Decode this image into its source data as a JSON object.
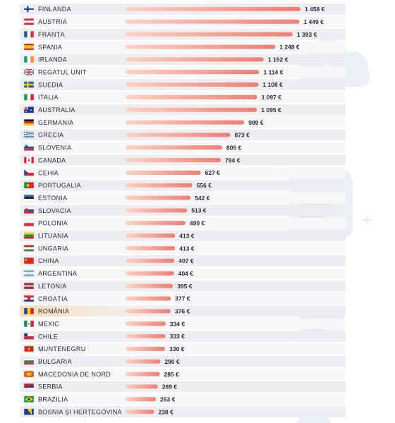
{
  "chart_data": {
    "type": "bar",
    "orientation": "horizontal",
    "value_suffix": " €",
    "xlim": [
      0,
      1600
    ],
    "grid": false,
    "legend": "none",
    "highlight_category": "ROMÂNIA",
    "colors": {
      "bar_start": "#fbd3c4",
      "bar_end": "#ee7e74",
      "row_stripe": "#eeeef2",
      "row_base": "#f7f7f9",
      "highlight": "#fde3bf",
      "text": "#2b2b3a",
      "deco": "#eceff5"
    },
    "categories": [
      "FINLANDA",
      "AUSTRIA",
      "FRANȚA",
      "SPANIA",
      "IRLANDA",
      "REGATUL UNIT",
      "SUEDIA",
      "ITALIA",
      "AUSTRALIA",
      "GERMANIA",
      "GRECIA",
      "SLOVENIA",
      "CANADA",
      "CEHIA",
      "PORTUGALIA",
      "ESTONIA",
      "SLOVACIA",
      "POLONIA",
      "LITUANIA",
      "UNGARIA",
      "CHINA",
      "ARGENTINA",
      "LETONIA",
      "CROAȚIA",
      "ROMÂNIA",
      "MEXIC",
      "CHILE",
      "MUNTENEGRU",
      "BULGARIA",
      "MACEDONIA DE NORD",
      "SERBIA",
      "BRAZILIA",
      "BOSNIA ȘI HERȚEGOVINA"
    ],
    "values": [
      1458,
      1449,
      1393,
      1248,
      1152,
      1114,
      1108,
      1097,
      1095,
      989,
      873,
      805,
      794,
      627,
      556,
      542,
      513,
      499,
      413,
      413,
      407,
      404,
      395,
      377,
      376,
      334,
      333,
      330,
      290,
      285,
      269,
      253,
      238
    ],
    "value_labels": [
      "1 458 €",
      "1 449 €",
      "1 393 €",
      "1 248 €",
      "1 152 €",
      "1 114 €",
      "1 108 €",
      "1 097 €",
      "1 095 €",
      "989 €",
      "873 €",
      "805 €",
      "794 €",
      "627 €",
      "556 €",
      "542 €",
      "513 €",
      "499 €",
      "413 €",
      "413 €",
      "407 €",
      "404 €",
      "395 €",
      "377 €",
      "376 €",
      "334 €",
      "333 €",
      "330 €",
      "290 €",
      "285 €",
      "269 €",
      "253 €",
      "238 €"
    ],
    "flag_icons": [
      "flag-finland-icon",
      "flag-austria-icon",
      "flag-france-icon",
      "flag-spain-icon",
      "flag-ireland-icon",
      "flag-united-kingdom-icon",
      "flag-sweden-icon",
      "flag-italy-icon",
      "flag-australia-icon",
      "flag-germany-icon",
      "flag-greece-icon",
      "flag-slovenia-icon",
      "flag-canada-icon",
      "flag-czechia-icon",
      "flag-portugal-icon",
      "flag-estonia-icon",
      "flag-slovakia-icon",
      "flag-poland-icon",
      "flag-lithuania-icon",
      "flag-hungary-icon",
      "flag-china-icon",
      "flag-argentina-icon",
      "flag-latvia-icon",
      "flag-croatia-icon",
      "flag-romania-icon",
      "flag-mexico-icon",
      "flag-chile-icon",
      "flag-montenegro-icon",
      "flag-bulgaria-icon",
      "flag-north-macedonia-icon",
      "flag-serbia-icon",
      "flag-brazil-icon",
      "flag-bosnia-herzegovina-icon"
    ]
  },
  "decorations": [
    "euro-cloud-icon",
    "receipt-icon",
    "credit-card-icon"
  ]
}
